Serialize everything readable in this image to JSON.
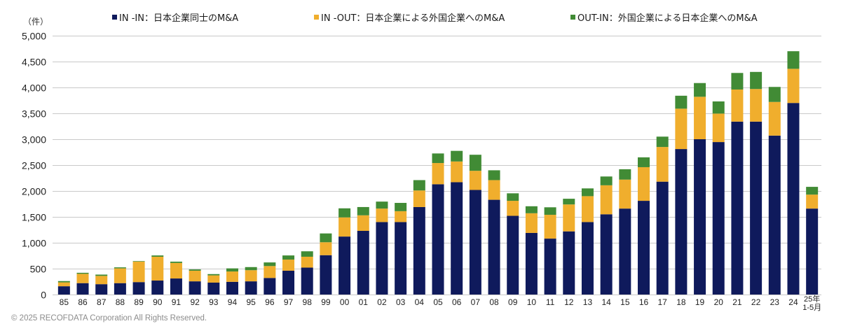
{
  "chart_data": {
    "type": "bar",
    "stacked": true,
    "ylabel": "（件）",
    "ylim": [
      0,
      5000
    ],
    "yticks": [
      0,
      500,
      1000,
      1500,
      2000,
      2500,
      3000,
      3500,
      4000,
      4500,
      5000
    ],
    "ytick_labels": [
      "0",
      "500",
      "1,000",
      "1,500",
      "2,000",
      "2,500",
      "3,000",
      "3,500",
      "4,000",
      "4,500",
      "5,000"
    ],
    "grid": true,
    "legend_position": "top",
    "categories": [
      "85",
      "86",
      "87",
      "88",
      "89",
      "90",
      "91",
      "92",
      "93",
      "94",
      "95",
      "96",
      "97",
      "98",
      "99",
      "00",
      "01",
      "02",
      "03",
      "04",
      "05",
      "06",
      "07",
      "08",
      "09",
      "10",
      "11",
      "12",
      "13",
      "14",
      "15",
      "16",
      "17",
      "18",
      "19",
      "20",
      "21",
      "22",
      "23",
      "24",
      "25年 1-5月"
    ],
    "series": [
      {
        "name": "IN -IN：日本企業同士のM&A",
        "color": "#0f1a5c",
        "values": [
          160,
          220,
          200,
          220,
          240,
          270,
          310,
          255,
          230,
          245,
          255,
          320,
          460,
          520,
          760,
          1120,
          1230,
          1400,
          1400,
          1690,
          2130,
          2170,
          2020,
          1830,
          1520,
          1190,
          1080,
          1220,
          1400,
          1550,
          1660,
          1810,
          2180,
          2810,
          3000,
          2945,
          3340,
          3340,
          3070,
          3700,
          1660
        ]
      },
      {
        "name": "IN -OUT：日本企業による外国企業へのM&A",
        "color": "#f0ae2d",
        "values": [
          75,
          180,
          160,
          285,
          395,
          460,
          300,
          205,
          140,
          200,
          215,
          230,
          215,
          210,
          250,
          370,
          300,
          260,
          210,
          320,
          410,
          400,
          370,
          380,
          290,
          380,
          460,
          520,
          500,
          560,
          560,
          650,
          670,
          780,
          820,
          550,
          620,
          630,
          650,
          660,
          270
        ]
      },
      {
        "name": "OUT-IN：外国企業による日本企業へのM&A",
        "color": "#418b35",
        "values": [
          25,
          20,
          25,
          20,
          10,
          25,
          25,
          25,
          25,
          60,
          60,
          70,
          80,
          105,
          170,
          175,
          160,
          135,
          160,
          200,
          185,
          205,
          310,
          190,
          145,
          135,
          145,
          110,
          150,
          170,
          200,
          190,
          200,
          250,
          265,
          235,
          320,
          330,
          290,
          340,
          150
        ]
      }
    ]
  },
  "footer": {
    "copyright": "© 2025 RECOFDATA Corporation All Rights Reserved."
  }
}
